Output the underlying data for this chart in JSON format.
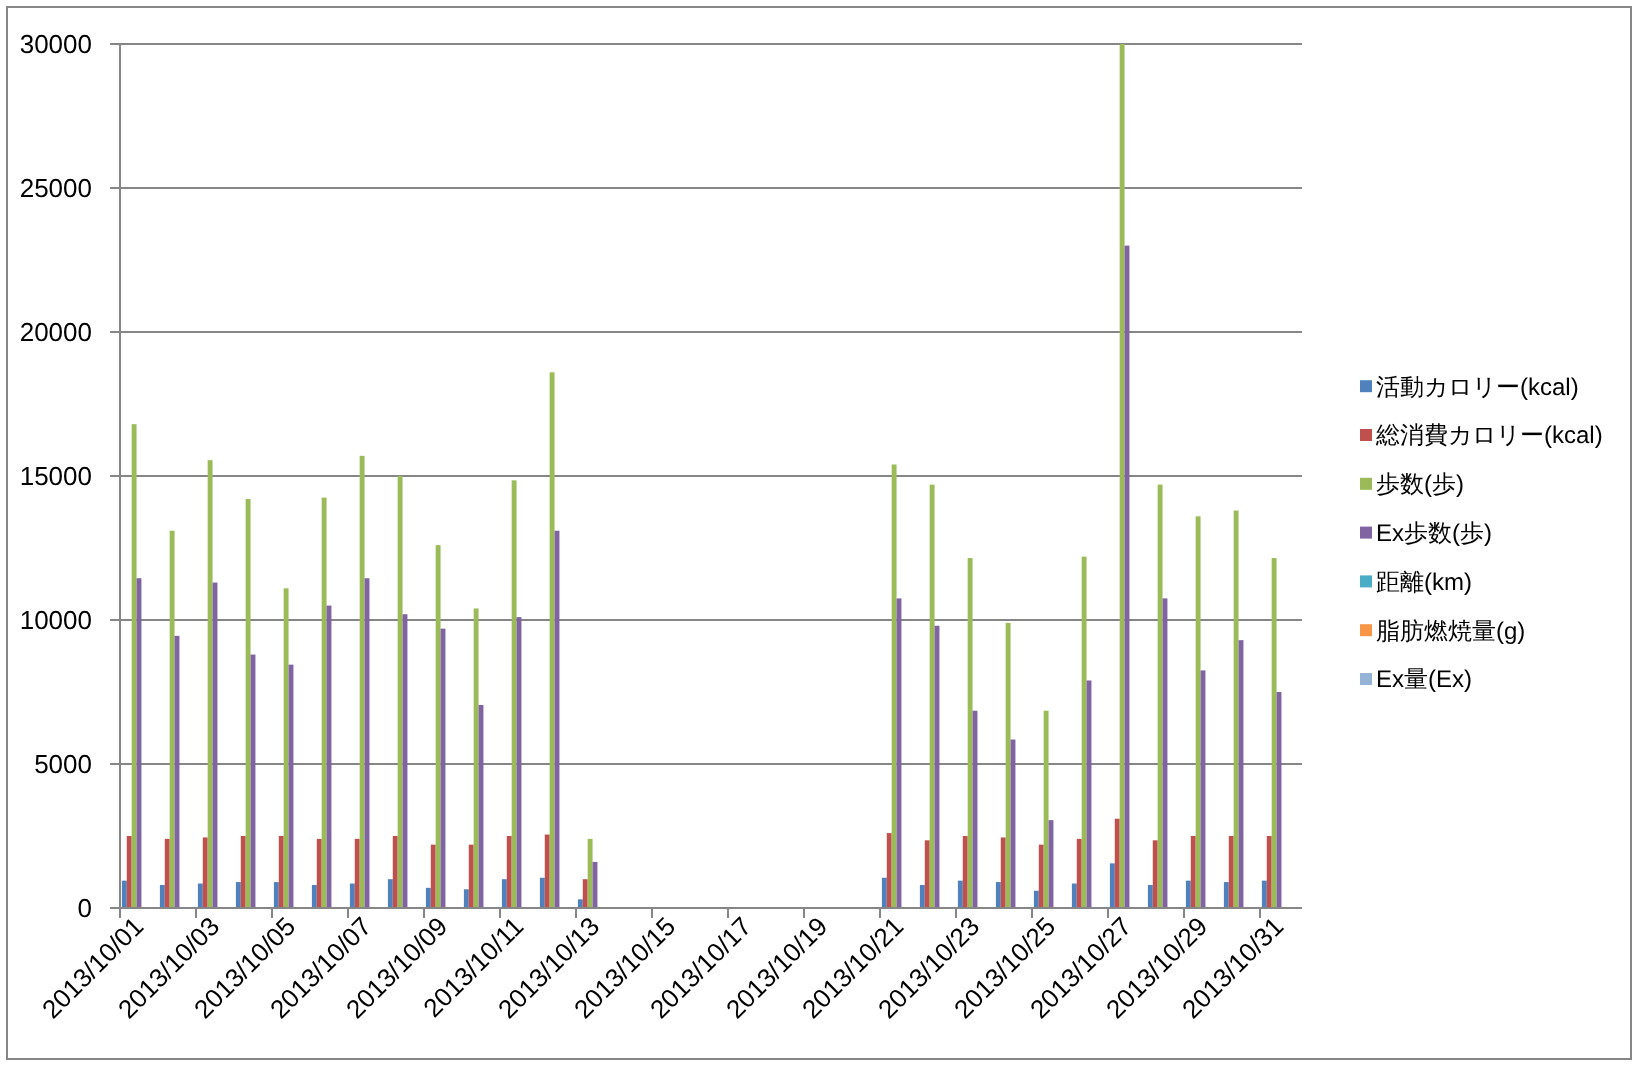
{
  "chart_data": {
    "type": "bar",
    "categories": [
      "2013/10/01",
      null,
      "2013/10/03",
      null,
      "2013/10/05",
      null,
      "2013/10/07",
      null,
      "2013/10/09",
      null,
      "2013/10/11",
      null,
      "2013/10/13",
      null,
      "2013/10/15",
      null,
      "2013/10/17",
      null,
      "2013/10/19",
      null,
      "2013/10/21",
      null,
      "2013/10/23",
      null,
      "2013/10/25",
      null,
      "2013/10/27",
      null,
      "2013/10/29",
      null,
      "2013/10/31"
    ],
    "series": [
      {
        "name": "活動カロリー(kcal)",
        "color": "#4f81bd",
        "values": [
          950,
          800,
          850,
          900,
          900,
          800,
          850,
          1000,
          700,
          650,
          1000,
          1050,
          300,
          null,
          null,
          null,
          null,
          null,
          null,
          null,
          1050,
          800,
          950,
          900,
          600,
          850,
          1550,
          800,
          950,
          900,
          950
        ]
      },
      {
        "name": "総消費カロリー(kcal)",
        "color": "#c0504d",
        "values": [
          2500,
          2400,
          2450,
          2500,
          2500,
          2400,
          2400,
          2500,
          2200,
          2200,
          2500,
          2550,
          1000,
          null,
          null,
          null,
          null,
          null,
          null,
          null,
          2600,
          2350,
          2500,
          2450,
          2200,
          2400,
          3100,
          2350,
          2500,
          2500,
          2500
        ]
      },
      {
        "name": "歩数(歩)",
        "color": "#9bbb59",
        "values": [
          16800,
          13100,
          15550,
          14200,
          11100,
          14250,
          15700,
          15000,
          12600,
          10400,
          14850,
          18600,
          2400,
          null,
          null,
          null,
          null,
          null,
          null,
          null,
          15400,
          14700,
          12150,
          9900,
          6850,
          12200,
          30000,
          14700,
          13600,
          13800,
          12150
        ]
      },
      {
        "name": "Ex歩数(歩)",
        "color": "#8064a2",
        "values": [
          11450,
          9450,
          11300,
          8800,
          8450,
          10500,
          11450,
          10200,
          9700,
          7050,
          10100,
          13100,
          1600,
          null,
          null,
          null,
          null,
          null,
          null,
          null,
          10750,
          9800,
          6850,
          5850,
          3050,
          7900,
          23000,
          10750,
          8250,
          9300,
          7500
        ]
      },
      {
        "name": "距離(km)",
        "color": "#4bacc6",
        "values": [
          0,
          0,
          0,
          0,
          0,
          0,
          0,
          0,
          0,
          0,
          0,
          0,
          0,
          null,
          null,
          null,
          null,
          null,
          null,
          null,
          0,
          0,
          0,
          0,
          0,
          0,
          0,
          0,
          0,
          0,
          0
        ]
      },
      {
        "name": "脂肪燃焼量(g)",
        "color": "#f79646",
        "values": [
          0,
          0,
          0,
          0,
          0,
          0,
          0,
          0,
          0,
          0,
          0,
          0,
          0,
          null,
          null,
          null,
          null,
          null,
          null,
          null,
          0,
          0,
          0,
          0,
          0,
          0,
          0,
          0,
          0,
          0,
          0
        ]
      },
      {
        "name": "Ex量(Ex)",
        "color": "#95b3d7",
        "values": [
          0,
          0,
          0,
          0,
          0,
          0,
          0,
          0,
          0,
          0,
          0,
          0,
          0,
          null,
          null,
          null,
          null,
          null,
          null,
          null,
          0,
          0,
          0,
          0,
          0,
          0,
          0,
          0,
          0,
          0,
          0
        ]
      }
    ],
    "ylim": [
      0,
      30000
    ],
    "yticks": [
      0,
      5000,
      10000,
      15000,
      20000,
      25000,
      30000
    ],
    "grid": "y",
    "legend": "right"
  }
}
